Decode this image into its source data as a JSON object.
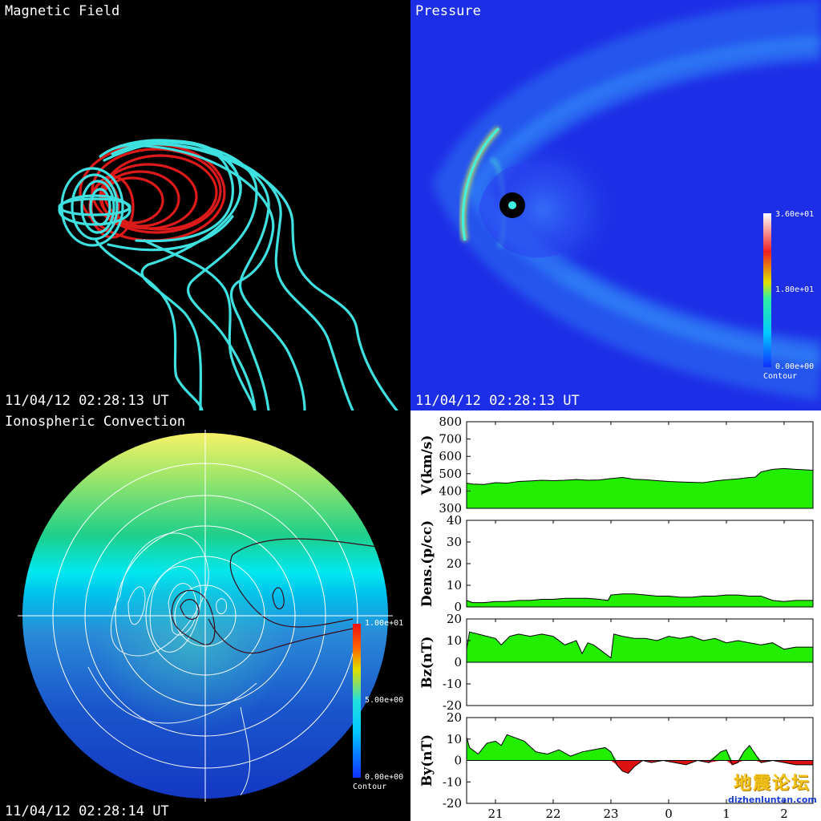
{
  "panels": {
    "magnetic": {
      "title": "Magnetic Field",
      "timestamp": "11/04/12 02:28:13 UT"
    },
    "pressure": {
      "title": "Pressure",
      "timestamp": "11/04/12 02:28:13 UT",
      "colorbar": {
        "max": "3.60e+01",
        "mid": "1.80e+01",
        "min": "0.00e+00",
        "label": "Contour"
      }
    },
    "ionosphere": {
      "title": "Ionospheric Convection",
      "timestamp": "11/04/12 02:28:14 UT",
      "colorbar": {
        "max": "1.00e+01",
        "mid": "5.00e+00",
        "min": "0.00e+00",
        "label": "Contour"
      }
    }
  },
  "colors": {
    "cyan": "#3fe0e0",
    "red": "#dd1a1a",
    "fill_green": "#22ee00",
    "fill_red": "#dd1111",
    "pressure_bg": "#1d2fe6"
  },
  "chart_data": [
    {
      "type": "area",
      "ylabel": "V(km/s)",
      "ylim": [
        300,
        800
      ],
      "yticks": [
        300,
        400,
        500,
        600,
        700,
        800
      ],
      "baseline": 300,
      "x": [
        20.5,
        20.6,
        20.8,
        21.0,
        21.2,
        21.4,
        21.6,
        21.8,
        22.0,
        22.2,
        22.4,
        22.6,
        22.8,
        23.0,
        23.2,
        23.4,
        23.6,
        23.8,
        24.0,
        24.2,
        24.4,
        24.6,
        24.8,
        25.0,
        25.2,
        25.4,
        25.5,
        25.6,
        25.8,
        26.0,
        26.2,
        26.5
      ],
      "values": [
        445,
        440,
        438,
        448,
        445,
        455,
        458,
        462,
        460,
        462,
        466,
        462,
        464,
        472,
        478,
        468,
        465,
        460,
        455,
        452,
        450,
        448,
        458,
        465,
        470,
        478,
        480,
        510,
        525,
        530,
        525,
        520
      ]
    },
    {
      "type": "area",
      "ylabel": "Dens.(p/cc)",
      "ylim": [
        0,
        40
      ],
      "yticks": [
        0,
        10,
        20,
        30,
        40
      ],
      "baseline": 0,
      "x": [
        20.5,
        20.6,
        20.8,
        21.0,
        21.2,
        21.4,
        21.6,
        21.8,
        22.0,
        22.2,
        22.4,
        22.6,
        22.8,
        22.95,
        23.0,
        23.2,
        23.4,
        23.6,
        23.8,
        24.0,
        24.2,
        24.4,
        24.6,
        24.8,
        25.0,
        25.2,
        25.4,
        25.6,
        25.8,
        26.0,
        26.2,
        26.5
      ],
      "values": [
        3,
        2,
        2,
        2.5,
        2.5,
        3,
        3,
        3.5,
        3.5,
        4,
        4,
        4,
        3.5,
        3,
        5.5,
        6,
        6,
        5.5,
        5,
        5,
        4.5,
        4.5,
        5,
        5,
        5.5,
        5.5,
        5,
        5,
        3,
        2.5,
        3,
        3
      ]
    },
    {
      "type": "area",
      "ylabel": "Bz(nT)",
      "ylim": [
        -20,
        20
      ],
      "yticks": [
        -20,
        -10,
        0,
        10,
        20
      ],
      "baseline": 0,
      "x": [
        20.5,
        20.55,
        20.7,
        20.85,
        21.0,
        21.1,
        21.25,
        21.4,
        21.6,
        21.8,
        22.0,
        22.2,
        22.4,
        22.5,
        22.6,
        22.7,
        22.8,
        22.9,
        23.0,
        23.05,
        23.2,
        23.4,
        23.6,
        23.8,
        24.0,
        24.2,
        24.4,
        24.6,
        24.8,
        25.0,
        25.2,
        25.4,
        25.6,
        25.8,
        26.0,
        26.2,
        26.5
      ],
      "values": [
        6,
        14,
        13,
        12,
        11,
        8,
        12,
        13,
        12,
        13,
        12,
        8,
        10,
        4,
        9,
        8,
        6,
        4,
        2,
        13,
        12,
        11,
        11,
        10,
        12,
        11,
        12,
        10,
        11,
        9,
        10,
        9,
        8,
        9,
        6,
        7,
        7
      ]
    },
    {
      "type": "area",
      "ylabel": "By(nT)",
      "ylim": [
        -20,
        20
      ],
      "yticks": [
        -20,
        -10,
        0,
        10,
        20
      ],
      "baseline": 0,
      "xticks": [
        21,
        22,
        23,
        0,
        1,
        2
      ],
      "x": [
        20.5,
        20.55,
        20.7,
        20.85,
        21.0,
        21.1,
        21.2,
        21.3,
        21.5,
        21.7,
        21.9,
        22.1,
        22.3,
        22.5,
        22.7,
        22.9,
        23.0,
        23.1,
        23.2,
        23.3,
        23.4,
        23.55,
        23.7,
        23.9,
        24.1,
        24.3,
        24.5,
        24.7,
        24.9,
        25.0,
        25.1,
        25.2,
        25.3,
        25.4,
        25.5,
        25.6,
        25.8,
        26.0,
        26.2,
        26.5
      ],
      "values": [
        11,
        6,
        3,
        8,
        9,
        7,
        12,
        11,
        9,
        4,
        3,
        5,
        2,
        4,
        5,
        6,
        4,
        -2,
        -5,
        -6,
        -3,
        0,
        -1,
        0,
        -1,
        -2,
        0,
        -1,
        4,
        5,
        -2,
        -1,
        4,
        7,
        3,
        -1,
        0,
        -1,
        -2,
        -2
      ]
    }
  ],
  "watermark": {
    "cn": "地震论坛",
    "en": "dizhenluntan.com"
  }
}
